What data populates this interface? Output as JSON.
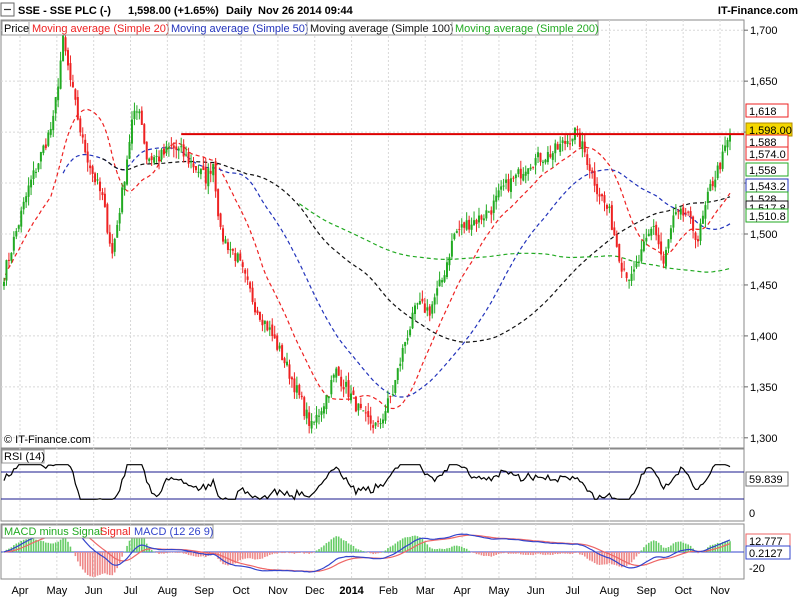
{
  "header": {
    "symbol": "SSE - SSE PLC (-)",
    "quote": "1,598.00 (+1.65%)",
    "interval": "Daily",
    "timestamp": "Nov 26 2014 09:44",
    "brand": "IT-Finance.com"
  },
  "watermark": "© IT-Finance.com",
  "legend": {
    "price": "Price",
    "ma20": "Moving average (Simple 20)",
    "ma50": "Moving average (Simple 50)",
    "ma100": "Moving average (Simple 100)",
    "ma200": "Moving average (Simple 200)"
  },
  "rsi_legend": "RSI (14)",
  "macd_legend": {
    "hist": "MACD minus Signal",
    "signal": "Signal",
    "macd": "MACD (12 26 9)"
  },
  "colors": {
    "up": "#22aa22",
    "down": "#ee2222",
    "ma20": "#ee2222",
    "ma50": "#2233bb",
    "ma100": "#111111",
    "ma200": "#22aa22",
    "resistance": "#dd0000",
    "badge_last": "#f5d800",
    "macd": "#3344cc",
    "signal": "#ee6666",
    "hist": "#66cc66"
  },
  "chart_data": [
    {
      "type": "candlestick",
      "title": "SSE - SSE PLC (-)",
      "ylim": [
        1290,
        1710
      ],
      "y_ticks": [
        "1,300",
        "1,350",
        "1,400",
        "1,450",
        "1,500",
        "1,550",
        "1,600",
        "1,650",
        "1,700"
      ],
      "x_ticks": [
        "Apr",
        "May",
        "Jun",
        "Jul",
        "Aug",
        "Sep",
        "Oct",
        "Nov",
        "Dec",
        "2014",
        "Feb",
        "Mar",
        "Apr",
        "May",
        "Jun",
        "Jul",
        "Aug",
        "Sep",
        "Oct",
        "Nov"
      ],
      "close_anchors": [
        [
          0,
          1460
        ],
        [
          10,
          1545
        ],
        [
          20,
          1610
        ],
        [
          24,
          1690
        ],
        [
          27,
          1650
        ],
        [
          32,
          1590
        ],
        [
          36,
          1560
        ],
        [
          40,
          1535
        ],
        [
          44,
          1480
        ],
        [
          48,
          1540
        ],
        [
          52,
          1610
        ],
        [
          55,
          1625
        ],
        [
          58,
          1575
        ],
        [
          63,
          1575
        ],
        [
          68,
          1585
        ],
        [
          72,
          1580
        ],
        [
          78,
          1565
        ],
        [
          82,
          1555
        ],
        [
          85,
          1570
        ],
        [
          88,
          1500
        ],
        [
          95,
          1475
        ],
        [
          102,
          1430
        ],
        [
          108,
          1405
        ],
        [
          114,
          1375
        ],
        [
          120,
          1340
        ],
        [
          125,
          1310
        ],
        [
          130,
          1335
        ],
        [
          135,
          1365
        ],
        [
          140,
          1345
        ],
        [
          146,
          1320
        ],
        [
          152,
          1310
        ],
        [
          158,
          1345
        ],
        [
          163,
          1395
        ],
        [
          168,
          1430
        ],
        [
          173,
          1425
        ],
        [
          178,
          1455
        ],
        [
          183,
          1500
        ],
        [
          188,
          1510
        ],
        [
          193,
          1515
        ],
        [
          198,
          1525
        ],
        [
          203,
          1545
        ],
        [
          208,
          1555
        ],
        [
          213,
          1570
        ],
        [
          218,
          1575
        ],
        [
          223,
          1580
        ],
        [
          228,
          1590
        ],
        [
          232,
          1600
        ],
        [
          236,
          1580
        ],
        [
          241,
          1545
        ],
        [
          246,
          1520
        ],
        [
          251,
          1470
        ],
        [
          255,
          1455
        ],
        [
          259,
          1480
        ],
        [
          264,
          1510
        ],
        [
          268,
          1470
        ],
        [
          272,
          1515
        ],
        [
          277,
          1520
        ],
        [
          282,
          1495
        ],
        [
          287,
          1545
        ],
        [
          292,
          1575
        ],
        [
          295,
          1598
        ]
      ],
      "levels": {
        "resistance": 1598,
        "tag_values": [
          "1,618",
          "1,598.00",
          "1,588",
          "1,574.0",
          "1,558",
          "1,543.2",
          "1,528",
          "1,517.8",
          "1,510.8"
        ]
      },
      "legend": [
        "Price",
        "Moving average (Simple 20)",
        "Moving average (Simple 50)",
        "Moving average (Simple 100)",
        "Moving average (Simple 200)"
      ],
      "grid": true
    },
    {
      "type": "line",
      "title": "RSI (14)",
      "ylim": [
        0,
        100
      ],
      "y_ticks": [
        "0"
      ],
      "bands": [
        30,
        70
      ],
      "last_value": "59.839",
      "legend": [
        "RSI (14)"
      ]
    },
    {
      "type": "line",
      "title": "MACD (12 26 9)",
      "y_ticks": [
        "-20"
      ],
      "last_values": [
        "12.777",
        "0.2127"
      ],
      "legend": [
        "MACD minus Signal",
        "Signal",
        "MACD (12 26 9)"
      ]
    }
  ]
}
